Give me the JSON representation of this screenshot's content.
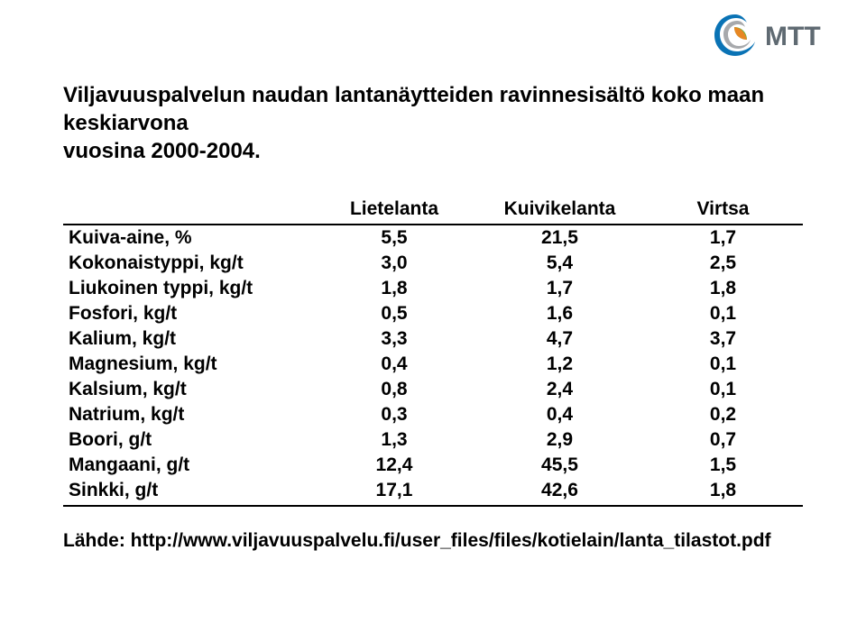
{
  "title_line1": "Viljavuuspalvelun naudan lantanäytteiden ravinnesisältö koko maan keskiarvona",
  "title_line2": "vuosina 2000-2004.",
  "columns": {
    "label": "",
    "c1": "Lietelanta",
    "c2": "Kuivikelanta",
    "c3": "Virtsa"
  },
  "rows": [
    {
      "label": "Kuiva-aine, %",
      "v1": "5,5",
      "v2": "21,5",
      "v3": "1,7"
    },
    {
      "label": "Kokonaistyppi, kg/t",
      "v1": "3,0",
      "v2": "5,4",
      "v3": "2,5"
    },
    {
      "label": "Liukoinen typpi, kg/t",
      "v1": "1,8",
      "v2": "1,7",
      "v3": "1,8"
    },
    {
      "label": "Fosfori, kg/t",
      "v1": "0,5",
      "v2": "1,6",
      "v3": "0,1"
    },
    {
      "label": "Kalium, kg/t",
      "v1": "3,3",
      "v2": "4,7",
      "v3": "3,7"
    },
    {
      "label": "Magnesium, kg/t",
      "v1": "0,4",
      "v2": "1,2",
      "v3": "0,1"
    },
    {
      "label": "Kalsium, kg/t",
      "v1": "0,8",
      "v2": "2,4",
      "v3": "0,1"
    },
    {
      "label": "Natrium, kg/t",
      "v1": "0,3",
      "v2": "0,4",
      "v3": "0,2"
    },
    {
      "label": "Boori, g/t",
      "v1": "1,3",
      "v2": "2,9",
      "v3": "0,7"
    },
    {
      "label": "Mangaani, g/t",
      "v1": "12,4",
      "v2": "45,5",
      "v3": "1,5"
    },
    {
      "label": "Sinkki, g/t",
      "v1": "17,1",
      "v2": "42,6",
      "v3": "1,8"
    }
  ],
  "source": "Lähde: http://www.viljavuuspalvelu.fi/user_files/files/kotielain/lanta_tilastot.pdf",
  "logo": {
    "text": "MTT",
    "swirl_colors": {
      "outer_blue": "#0a73b5",
      "inner_gray": "#a7a9ac",
      "leaf_green": "#6cb33f",
      "leaf_orange": "#f58220"
    },
    "text_color": "#5f6a72"
  }
}
